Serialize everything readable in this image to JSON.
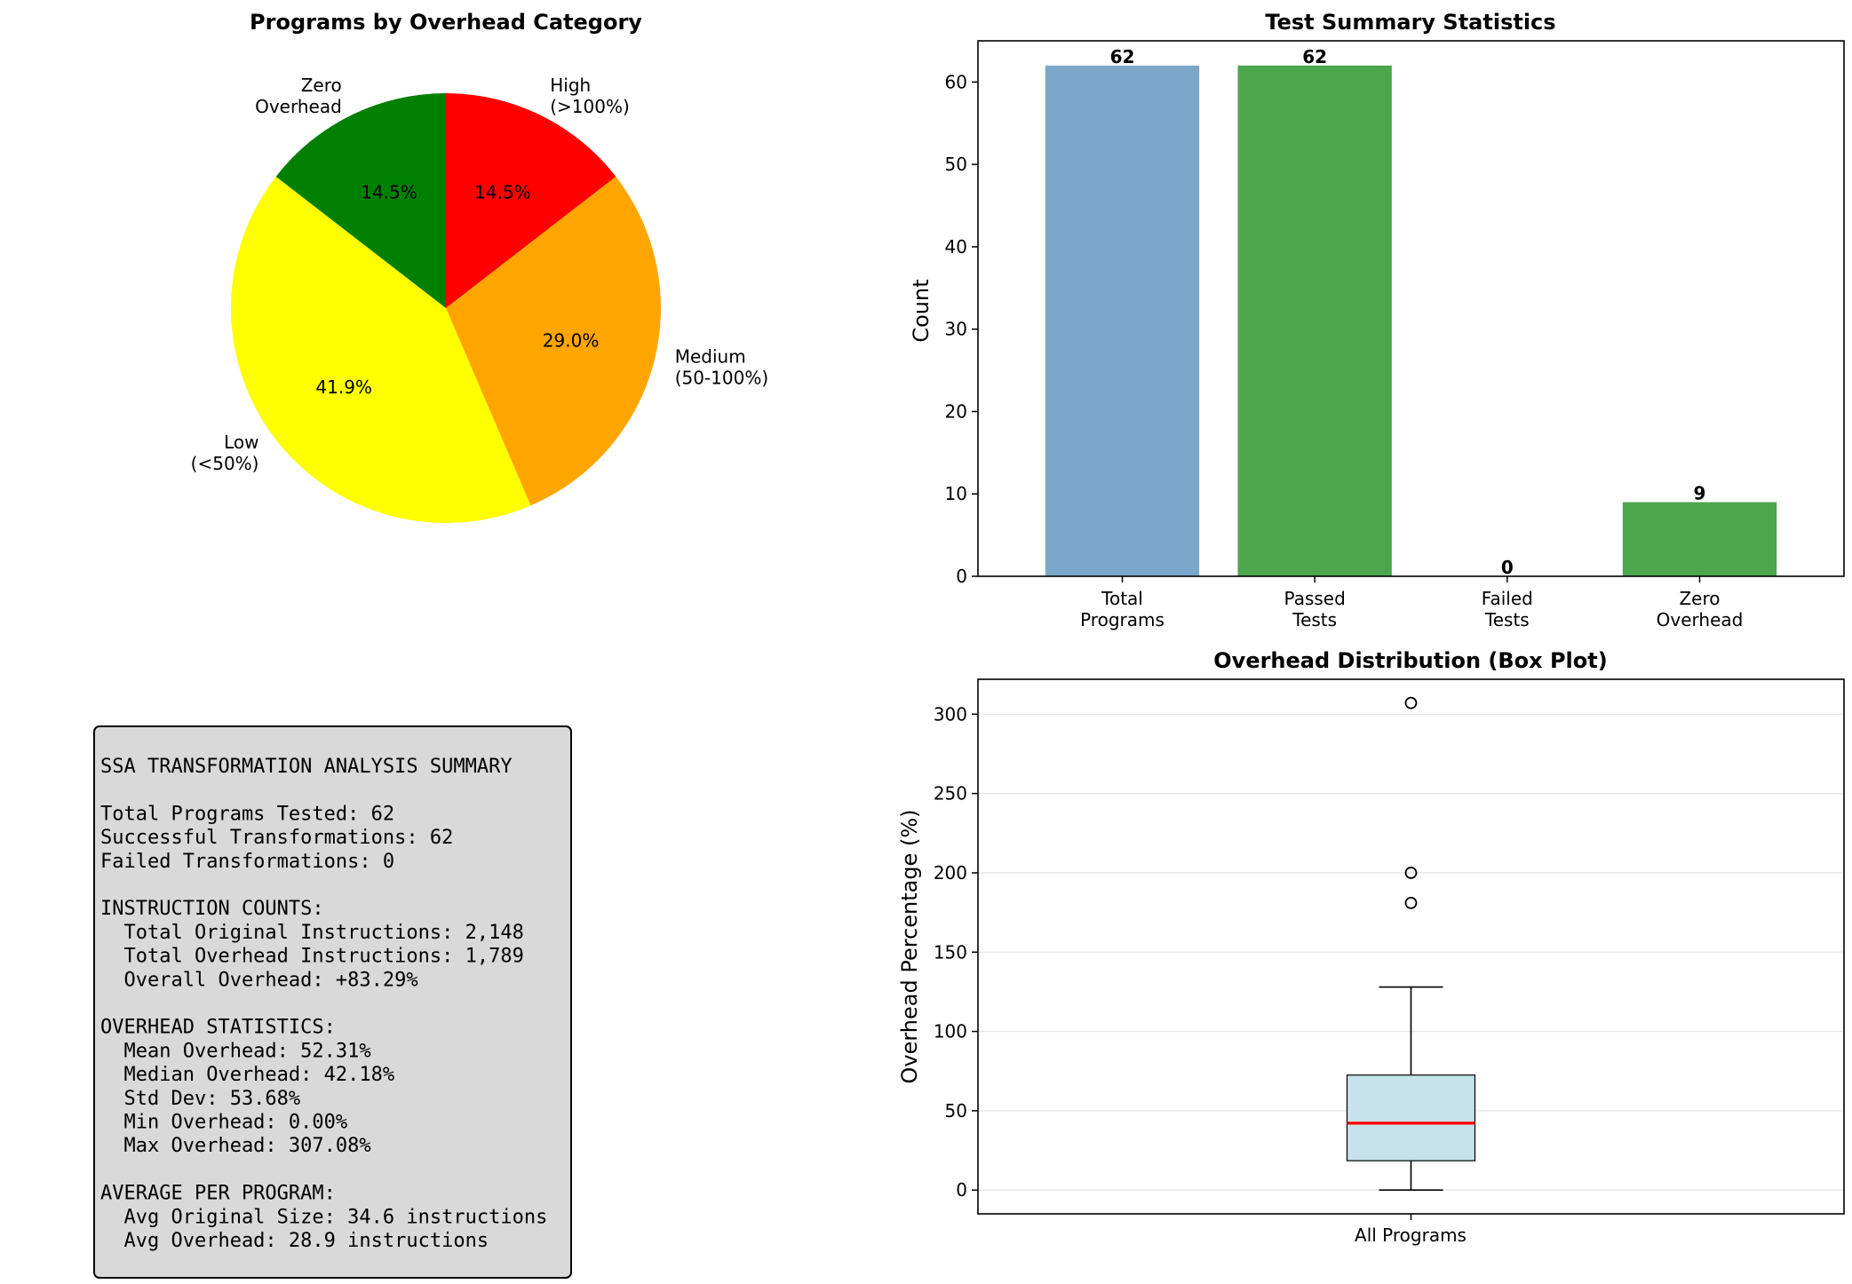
{
  "chart_data": [
    {
      "type": "pie",
      "title": "Programs by Overhead Category",
      "slices": [
        {
          "label": [
            "High",
            "(>100%)"
          ],
          "pct": 14.5,
          "pct_label": "14.5%",
          "color": "#ff0000"
        },
        {
          "label": [
            "Medium",
            "(50-100%)"
          ],
          "pct": 29.0,
          "pct_label": "29.0%",
          "color": "#ffa500"
        },
        {
          "label": [
            "Low",
            "(<50%)"
          ],
          "pct": 41.9,
          "pct_label": "41.9%",
          "color": "#ffff00"
        },
        {
          "label": [
            "Zero",
            "Overhead"
          ],
          "pct": 14.5,
          "pct_label": "14.5%",
          "color": "#008000"
        }
      ]
    },
    {
      "type": "bar",
      "title": "Test Summary Statistics",
      "ylabel": "Count",
      "ylim": [
        0,
        65
      ],
      "yticks": [
        0,
        10,
        20,
        30,
        40,
        50,
        60
      ],
      "categories": [
        [
          "Total",
          "Programs"
        ],
        [
          "Passed",
          "Tests"
        ],
        [
          "Failed",
          "Tests"
        ],
        [
          "Zero",
          "Overhead"
        ]
      ],
      "values": [
        62,
        62,
        0,
        9
      ],
      "value_labels": [
        "62",
        "62",
        "0",
        "9"
      ],
      "colors": [
        "#7ba7cb",
        "#4ca64c",
        "#ff5555",
        "#4ca64c"
      ]
    },
    {
      "type": "box",
      "title": "Overhead Distribution (Box Plot)",
      "ylabel": "Overhead Percentage (%)",
      "xlabel": "All Programs",
      "ylim": [
        -15,
        322
      ],
      "yticks": [
        0,
        50,
        100,
        150,
        200,
        250,
        300
      ],
      "grid": true,
      "stats": {
        "q1": 18.5,
        "median": 42.18,
        "q3": 72.5,
        "whisker_low": 0.0,
        "whisker_high": 128.0
      },
      "outliers": [
        307.08,
        200.0,
        181.0
      ],
      "box_color": "#c6e2eb",
      "median_color": "#ff0000"
    }
  ],
  "summary_box": {
    "lines": [
      "SSA TRANSFORMATION ANALYSIS SUMMARY",
      "",
      "Total Programs Tested: 62",
      "Successful Transformations: 62",
      "Failed Transformations: 0",
      "",
      "INSTRUCTION COUNTS:",
      "  Total Original Instructions: 2,148",
      "  Total Overhead Instructions: 1,789",
      "  Overall Overhead: +83.29%",
      "",
      "OVERHEAD STATISTICS:",
      "  Mean Overhead: 52.31%",
      "  Median Overhead: 42.18%",
      "  Std Dev: 53.68%",
      "  Min Overhead: 0.00%",
      "  Max Overhead: 307.08%",
      "",
      "AVERAGE PER PROGRAM:",
      "  Avg Original Size: 34.6 instructions",
      "  Avg Overhead: 28.9 instructions"
    ]
  }
}
